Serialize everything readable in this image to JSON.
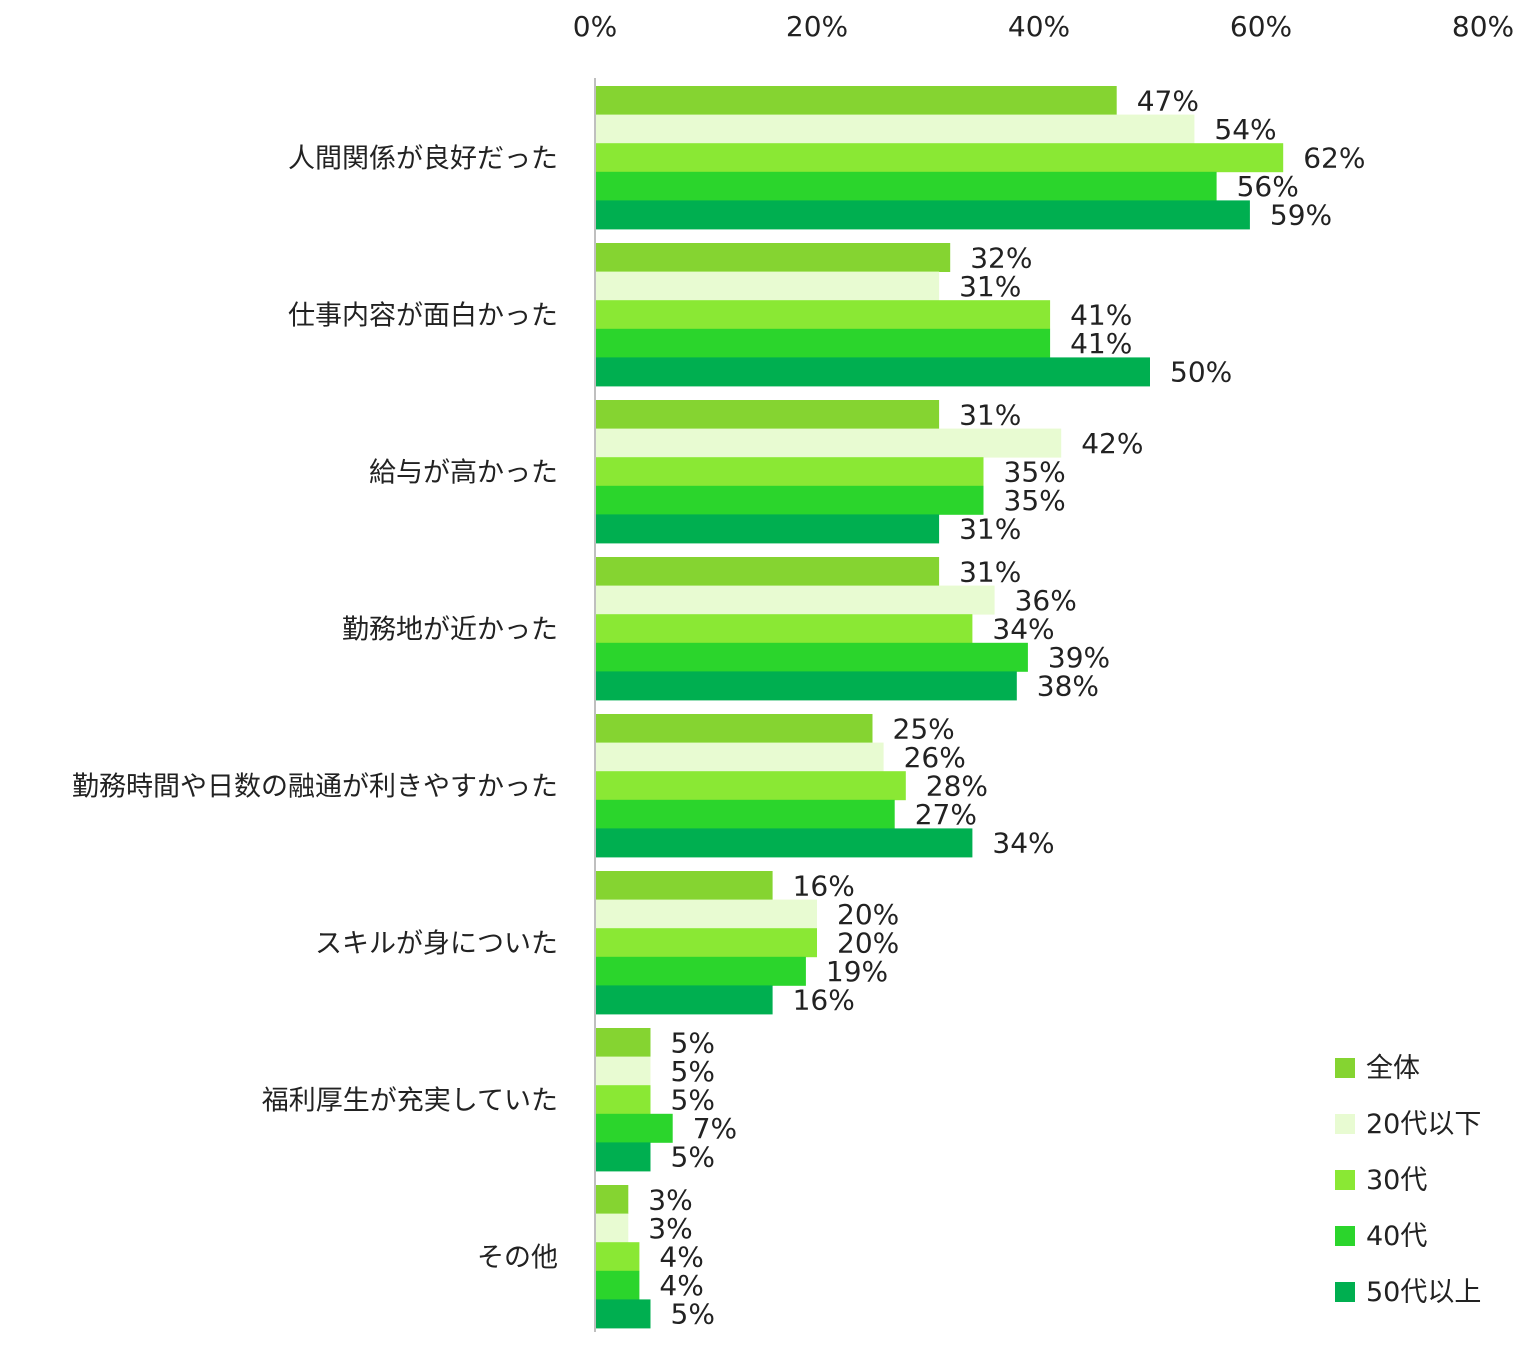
{
  "chart_data": {
    "type": "bar",
    "orientation": "horizontal",
    "xlim": [
      0,
      80
    ],
    "x_ticks": [
      "0%",
      "20%",
      "40%",
      "60%",
      "80%"
    ],
    "x_tick_values": [
      0,
      20,
      40,
      60,
      80
    ],
    "categories": [
      "人間関係が良好だった",
      "仕事内容が面白かった",
      "給与が高かった",
      "勤務地が近かった",
      "勤務時間や日数の融通が利きやすかった",
      "スキルが身についた",
      "福利厚生が充実していた",
      "その他"
    ],
    "series": [
      {
        "name": "全体",
        "color": "#85D431",
        "values": [
          47,
          32,
          31,
          31,
          25,
          16,
          5,
          3
        ]
      },
      {
        "name": "20代以下",
        "color": "#E8FBD2",
        "values": [
          54,
          31,
          42,
          36,
          26,
          20,
          5,
          3
        ]
      },
      {
        "name": "30代",
        "color": "#8AE834",
        "values": [
          62,
          41,
          35,
          34,
          28,
          20,
          5,
          4
        ]
      },
      {
        "name": "40代",
        "color": "#2BD52C",
        "values": [
          56,
          41,
          35,
          39,
          27,
          19,
          7,
          4
        ]
      },
      {
        "name": "50代以上",
        "color": "#00AF50",
        "values": [
          59,
          50,
          31,
          38,
          34,
          16,
          5,
          5
        ]
      }
    ],
    "value_suffix": "%",
    "legend_position": "bottom-right",
    "grid": false
  }
}
